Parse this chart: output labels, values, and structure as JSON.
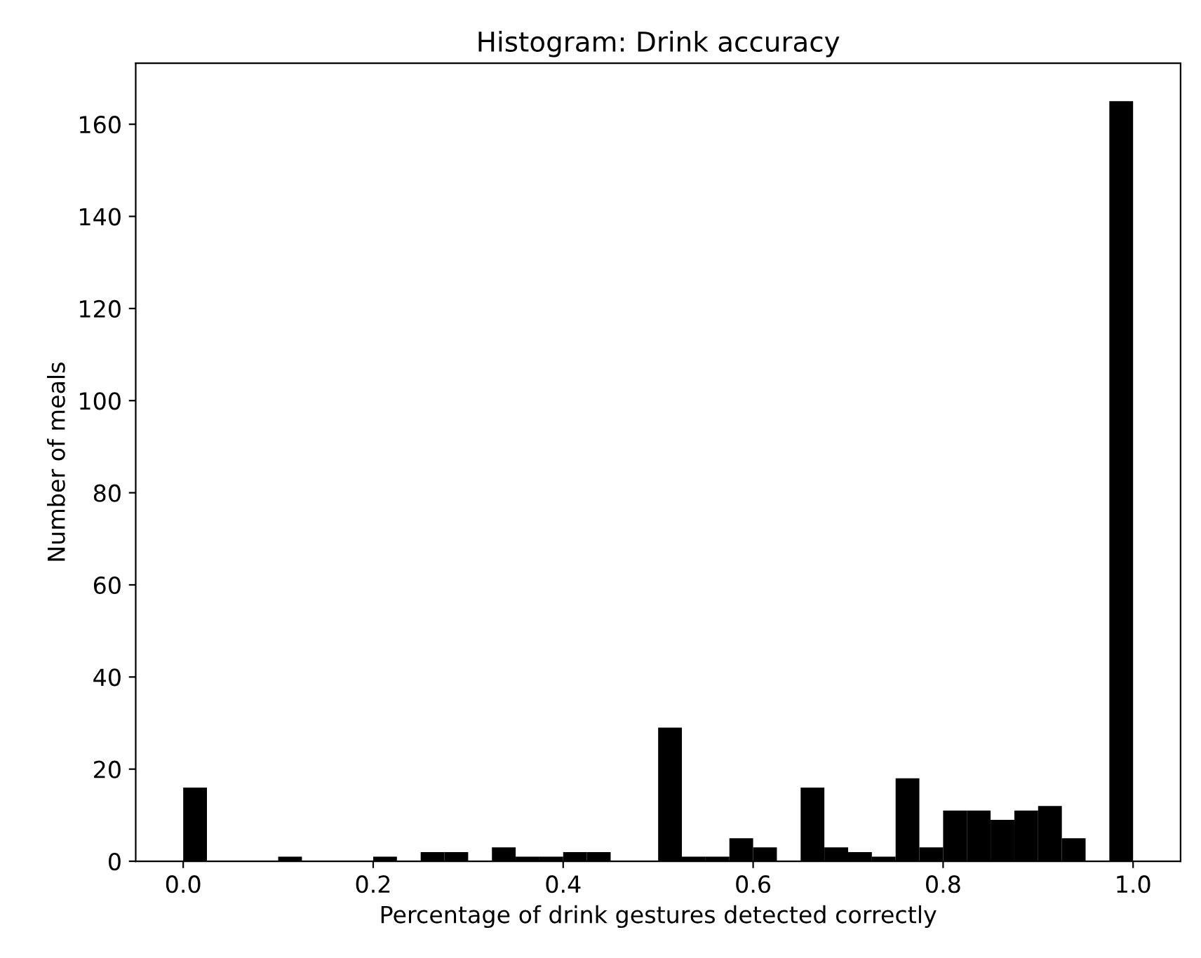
{
  "chart_data": {
    "type": "histogram",
    "title": "Histogram: Drink accuracy",
    "xlabel": "Percentage of drink gestures detected correctly",
    "ylabel": "Number of meals",
    "color": "#000000",
    "bins": [
      0,
      0.025,
      0.05,
      0.075,
      0.1,
      0.125,
      0.15,
      0.175,
      0.2,
      0.225,
      0.25,
      0.275,
      0.3,
      0.325,
      0.35,
      0.375,
      0.4,
      0.425,
      0.45,
      0.475,
      0.5,
      0.525,
      0.55,
      0.575,
      0.6,
      0.625,
      0.65,
      0.675,
      0.7,
      0.725,
      0.75,
      0.775,
      0.8,
      0.825,
      0.85,
      0.875,
      0.9,
      0.925,
      0.95,
      0.975,
      1.0
    ],
    "values": [
      16,
      0,
      0,
      0,
      1,
      0,
      0,
      0,
      1,
      0,
      2,
      2,
      0,
      3,
      1,
      1,
      2,
      2,
      0,
      0,
      29,
      1,
      1,
      5,
      3,
      0,
      16,
      3,
      2,
      1,
      18,
      3,
      11,
      11,
      9,
      11,
      12,
      5,
      0,
      165
    ],
    "xlim": [
      -0.05,
      1.05
    ],
    "xticks": [
      {
        "value": 0,
        "label": "0.0"
      },
      0.2,
      0.4,
      0.6,
      0.8,
      {
        "value": 1,
        "label": "1.0"
      }
    ],
    "ylim": [
      0,
      173.25
    ],
    "yticks": [
      0,
      20,
      40,
      60,
      80,
      100,
      120,
      140,
      160
    ],
    "grid": false
  }
}
